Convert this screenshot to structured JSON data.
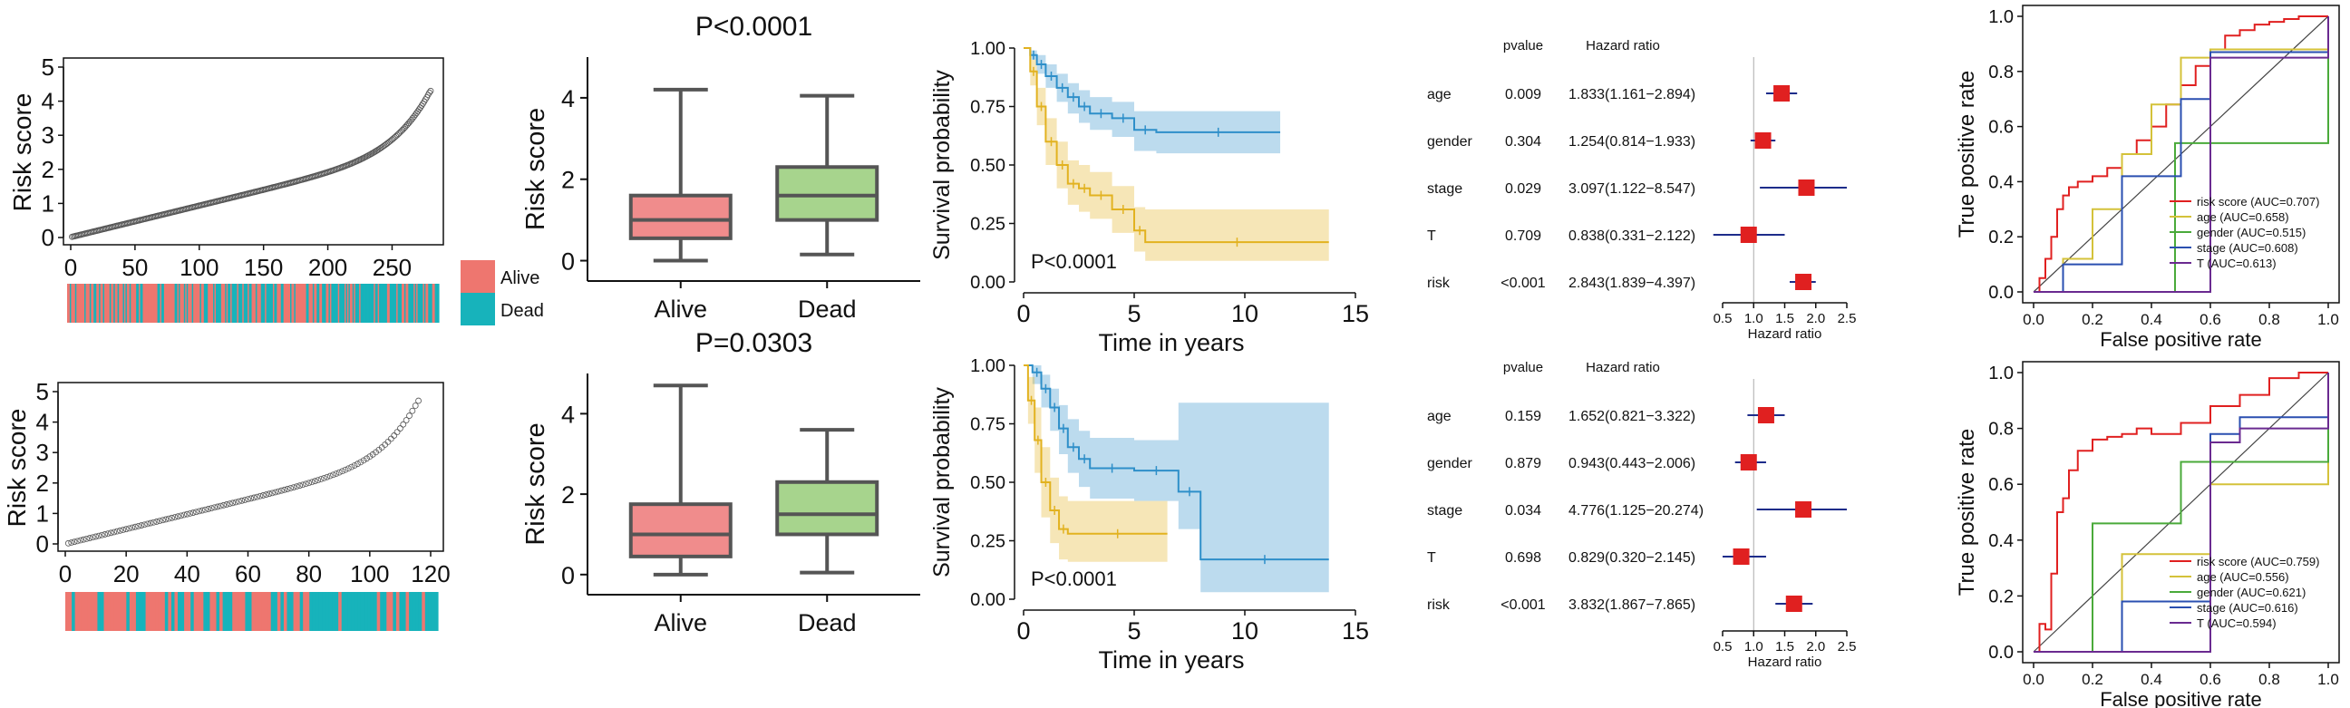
{
  "legend": {
    "items": [
      {
        "label": "Alive",
        "color": "#ee766f"
      },
      {
        "label": "Dead",
        "color": "#17b3bb"
      }
    ]
  },
  "colors": {
    "alive": "#ee766f",
    "dead": "#17b3bb",
    "box_alive": "#f08c8c",
    "box_dead": "#a7d48d",
    "km_low": "#2e8fc9",
    "km_high": "#e2b220"
  },
  "chart_data": [
    {
      "id": "scatter_top",
      "type": "scatter",
      "ylabel": "Risk score",
      "xlim": [
        0,
        280
      ],
      "ylim": [
        0,
        5
      ],
      "xticks": [
        "0",
        "50",
        "100",
        "150",
        "200",
        "250"
      ],
      "yticks": [
        "0",
        "1",
        "2",
        "3",
        "4",
        "5"
      ],
      "n": 280,
      "y_start": 0.02,
      "y_end": 4.3
    },
    {
      "id": "scatter_bottom",
      "type": "scatter",
      "ylabel": "Risk score",
      "xlim": [
        0,
        120
      ],
      "ylim": [
        0,
        5
      ],
      "xticks": [
        "0",
        "20",
        "40",
        "60",
        "80",
        "100",
        "120"
      ],
      "yticks": [
        "0",
        "1",
        "2",
        "3",
        "4",
        "5"
      ],
      "n": 116,
      "y_start": 0.02,
      "y_end": 4.7
    },
    {
      "id": "box_top",
      "type": "box",
      "title": "P<0.0001",
      "ylabel": "Risk score",
      "categories": [
        "Alive",
        "Dead"
      ],
      "ylim": [
        -0.5,
        5
      ],
      "yticks": [
        "0",
        "2",
        "4"
      ],
      "boxes": [
        {
          "category": "Alive",
          "min": 0.0,
          "q1": 0.55,
          "median": 1.0,
          "q3": 1.6,
          "max": 4.2
        },
        {
          "category": "Dead",
          "min": 0.15,
          "q1": 1.0,
          "median": 1.6,
          "q3": 2.3,
          "max": 4.05
        }
      ]
    },
    {
      "id": "box_bottom",
      "type": "box",
      "title": "P=0.0303",
      "ylabel": "Risk score",
      "categories": [
        "Alive",
        "Dead"
      ],
      "ylim": [
        -0.5,
        5
      ],
      "yticks": [
        "0",
        "2",
        "4"
      ],
      "boxes": [
        {
          "category": "Alive",
          "min": 0.0,
          "q1": 0.45,
          "median": 1.0,
          "q3": 1.75,
          "max": 4.7
        },
        {
          "category": "Dead",
          "min": 0.05,
          "q1": 1.0,
          "median": 1.5,
          "q3": 2.3,
          "max": 3.6
        }
      ]
    },
    {
      "id": "km_top",
      "type": "line",
      "xlabel": "Time in years",
      "ylabel": "Survival probability",
      "annotation": "P<0.0001",
      "xlim": [
        0,
        15
      ],
      "ylim": [
        0,
        1
      ],
      "xticks": [
        "0",
        "5",
        "10",
        "15"
      ],
      "yticks": [
        "0.00",
        "0.25",
        "0.50",
        "0.75",
        "1.00"
      ],
      "series": [
        {
          "color": "#2e8fc9",
          "x": [
            0,
            0.3,
            0.6,
            1,
            1.5,
            2,
            2.5,
            3,
            4,
            5,
            6,
            11.6
          ],
          "y": [
            1,
            0.97,
            0.93,
            0.88,
            0.83,
            0.79,
            0.75,
            0.72,
            0.7,
            0.65,
            0.64,
            0.64
          ],
          "upper": [
            1,
            0.99,
            0.97,
            0.93,
            0.89,
            0.85,
            0.82,
            0.79,
            0.77,
            0.73,
            0.73,
            0.73
          ],
          "lower": [
            1,
            0.95,
            0.89,
            0.83,
            0.77,
            0.72,
            0.68,
            0.65,
            0.62,
            0.56,
            0.55,
            0.55
          ]
        },
        {
          "color": "#e2b220",
          "x": [
            0,
            0.3,
            0.6,
            1,
            1.5,
            2,
            2.5,
            3,
            4,
            5,
            5.5,
            13.8
          ],
          "y": [
            1,
            0.9,
            0.75,
            0.6,
            0.5,
            0.42,
            0.4,
            0.37,
            0.31,
            0.22,
            0.17,
            0.17
          ],
          "upper": [
            1,
            0.95,
            0.83,
            0.7,
            0.6,
            0.52,
            0.5,
            0.47,
            0.41,
            0.32,
            0.31,
            0.31
          ],
          "lower": [
            1,
            0.84,
            0.67,
            0.5,
            0.4,
            0.33,
            0.3,
            0.27,
            0.21,
            0.13,
            0.09,
            0.09
          ]
        }
      ]
    },
    {
      "id": "km_bottom",
      "type": "line",
      "xlabel": "Time in years",
      "ylabel": "Survival probability",
      "annotation": "P<0.0001",
      "xlim": [
        0,
        15
      ],
      "ylim": [
        0,
        1
      ],
      "xticks": [
        "0",
        "5",
        "10",
        "15"
      ],
      "yticks": [
        "0.00",
        "0.25",
        "0.50",
        "0.75",
        "1.00"
      ],
      "series": [
        {
          "color": "#2e8fc9",
          "x": [
            0,
            0.4,
            0.8,
            1.2,
            1.6,
            2,
            2.5,
            3,
            5,
            7,
            8,
            13.8
          ],
          "y": [
            1,
            0.97,
            0.9,
            0.82,
            0.73,
            0.65,
            0.6,
            0.56,
            0.55,
            0.46,
            0.17,
            0.17
          ],
          "upper": [
            1,
            1,
            0.96,
            0.9,
            0.83,
            0.77,
            0.72,
            0.69,
            0.68,
            0.84,
            0.84,
            0.84
          ],
          "lower": [
            1,
            0.92,
            0.82,
            0.72,
            0.62,
            0.54,
            0.48,
            0.43,
            0.42,
            0.3,
            0.03,
            0.03
          ]
        },
        {
          "color": "#e2b220",
          "x": [
            0,
            0.2,
            0.5,
            0.8,
            1.2,
            1.6,
            2,
            6.5
          ],
          "y": [
            1,
            0.85,
            0.68,
            0.5,
            0.38,
            0.3,
            0.28,
            0.28
          ],
          "upper": [
            1,
            0.95,
            0.82,
            0.65,
            0.52,
            0.44,
            0.42,
            0.42
          ],
          "lower": [
            1,
            0.75,
            0.54,
            0.35,
            0.24,
            0.17,
            0.16,
            0.16
          ]
        }
      ]
    },
    {
      "id": "forest_top",
      "type": "forest",
      "headers": [
        "pvalue",
        "Hazard ratio"
      ],
      "xlabel": "Hazard ratio",
      "xlim": [
        0.5,
        2.5
      ],
      "xticks": [
        "0.5",
        "1.0",
        "1.5",
        "2.0",
        "2.5"
      ],
      "ref": 1.0,
      "rows": [
        {
          "var": "age",
          "p": "0.009",
          "hr_text": "1.833(1.161−2.894)",
          "hr": 1.45,
          "lo": 1.2,
          "hi": 1.7
        },
        {
          "var": "gender",
          "p": "0.304",
          "hr_text": "1.254(0.814−1.933)",
          "hr": 1.15,
          "lo": 0.95,
          "hi": 1.35
        },
        {
          "var": "stage",
          "p": "0.029",
          "hr_text": "3.097(1.122−8.547)",
          "hr": 1.85,
          "lo": 1.1,
          "hi": 2.5
        },
        {
          "var": "T",
          "p": "0.709",
          "hr_text": "0.838(0.331−2.122)",
          "hr": 0.92,
          "lo": 0.35,
          "hi": 1.5
        },
        {
          "var": "risk",
          "p": "<0.001",
          "hr_text": "2.843(1.839−4.397)",
          "hr": 1.8,
          "lo": 1.58,
          "hi": 2.0
        }
      ]
    },
    {
      "id": "forest_bottom",
      "type": "forest",
      "headers": [
        "pvalue",
        "Hazard ratio"
      ],
      "xlabel": "Hazard ratio",
      "xlim": [
        0.5,
        2.5
      ],
      "xticks": [
        "0.5",
        "1.0",
        "1.5",
        "2.0",
        "2.5"
      ],
      "ref": 1.0,
      "rows": [
        {
          "var": "age",
          "p": "0.159",
          "hr_text": "1.652(0.821−3.322)",
          "hr": 1.2,
          "lo": 0.9,
          "hi": 1.5
        },
        {
          "var": "gender",
          "p": "0.879",
          "hr_text": "0.943(0.443−2.006)",
          "hr": 0.92,
          "lo": 0.7,
          "hi": 1.2
        },
        {
          "var": "stage",
          "p": "0.034",
          "hr_text": "4.776(1.125−20.274)",
          "hr": 1.8,
          "lo": 1.05,
          "hi": 2.5
        },
        {
          "var": "T",
          "p": "0.698",
          "hr_text": "0.829(0.320−2.145)",
          "hr": 0.8,
          "lo": 0.5,
          "hi": 1.2
        },
        {
          "var": "risk",
          "p": "<0.001",
          "hr_text": "3.832(1.867−7.865)",
          "hr": 1.65,
          "lo": 1.35,
          "hi": 1.95
        }
      ]
    },
    {
      "id": "roc_top",
      "type": "line",
      "xlabel": "False positive rate",
      "ylabel": "True positive rate",
      "xlim": [
        0,
        1
      ],
      "ylim": [
        0,
        1
      ],
      "xticks": [
        "0.0",
        "0.2",
        "0.4",
        "0.6",
        "0.8",
        "1.0"
      ],
      "yticks": [
        "0.0",
        "0.2",
        "0.4",
        "0.6",
        "0.8",
        "1.0"
      ],
      "legend_position": "bottom-right",
      "series": [
        {
          "name": "risk score (AUC=0.707)",
          "color": "#e02020",
          "x": [
            0,
            0.02,
            0.04,
            0.06,
            0.08,
            0.1,
            0.12,
            0.15,
            0.2,
            0.25,
            0.3,
            0.35,
            0.4,
            0.45,
            0.5,
            0.55,
            0.6,
            0.65,
            0.7,
            0.75,
            0.8,
            0.85,
            0.9,
            0.95,
            1
          ],
          "y": [
            0,
            0.05,
            0.12,
            0.2,
            0.3,
            0.35,
            0.38,
            0.4,
            0.42,
            0.45,
            0.5,
            0.55,
            0.6,
            0.68,
            0.75,
            0.82,
            0.88,
            0.93,
            0.95,
            0.97,
            0.98,
            0.99,
            1,
            1,
            1
          ]
        },
        {
          "name": "age (AUC=0.658)",
          "color": "#d4c23a",
          "x": [
            0,
            0.1,
            0.2,
            0.3,
            0.4,
            0.5,
            0.6,
            1
          ],
          "y": [
            0,
            0.12,
            0.3,
            0.5,
            0.68,
            0.85,
            0.88,
            1
          ]
        },
        {
          "name": "gender (AUC=0.515)",
          "color": "#4aaa3a",
          "x": [
            0,
            0.48,
            1
          ],
          "y": [
            0,
            0.54,
            1
          ]
        },
        {
          "name": "stage (AUC=0.608)",
          "color": "#2a4fb0",
          "x": [
            0,
            0.1,
            0.3,
            0.5,
            0.6,
            1
          ],
          "y": [
            0,
            0.1,
            0.42,
            0.7,
            0.87,
            1
          ]
        },
        {
          "name": "T (AUC=0.613)",
          "color": "#6a2a90",
          "x": [
            0,
            0.6,
            1
          ],
          "y": [
            0,
            0.85,
            1
          ]
        }
      ]
    },
    {
      "id": "roc_bottom",
      "type": "line",
      "xlabel": "False positive rate",
      "ylabel": "True positive rate",
      "xlim": [
        0,
        1
      ],
      "ylim": [
        0,
        1
      ],
      "xticks": [
        "0.0",
        "0.2",
        "0.4",
        "0.6",
        "0.8",
        "1.0"
      ],
      "yticks": [
        "0.0",
        "0.2",
        "0.4",
        "0.6",
        "0.8",
        "1.0"
      ],
      "legend_position": "bottom-right",
      "series": [
        {
          "name": "risk score (AUC=0.759)",
          "color": "#e02020",
          "x": [
            0,
            0.02,
            0.04,
            0.06,
            0.08,
            0.1,
            0.12,
            0.15,
            0.2,
            0.25,
            0.3,
            0.35,
            0.4,
            0.5,
            0.6,
            0.7,
            0.8,
            0.9,
            1
          ],
          "y": [
            0,
            0.1,
            0.08,
            0.28,
            0.5,
            0.55,
            0.65,
            0.72,
            0.76,
            0.77,
            0.78,
            0.8,
            0.78,
            0.82,
            0.88,
            0.92,
            0.98,
            1,
            1
          ]
        },
        {
          "name": "age (AUC=0.556)",
          "color": "#d4c23a",
          "x": [
            0,
            0.3,
            0.6,
            1
          ],
          "y": [
            0,
            0.35,
            0.6,
            1
          ]
        },
        {
          "name": "gender (AUC=0.621)",
          "color": "#4aaa3a",
          "x": [
            0,
            0.2,
            0.5,
            1
          ],
          "y": [
            0,
            0.46,
            0.68,
            1
          ]
        },
        {
          "name": "stage (AUC=0.616)",
          "color": "#2a4fb0",
          "x": [
            0,
            0.3,
            0.6,
            0.7,
            1
          ],
          "y": [
            0,
            0.18,
            0.78,
            0.84,
            1
          ]
        },
        {
          "name": "T (AUC=0.594)",
          "color": "#6a2a90",
          "x": [
            0,
            0.6,
            0.7,
            1
          ],
          "y": [
            0,
            0.75,
            0.8,
            1
          ]
        }
      ]
    }
  ]
}
